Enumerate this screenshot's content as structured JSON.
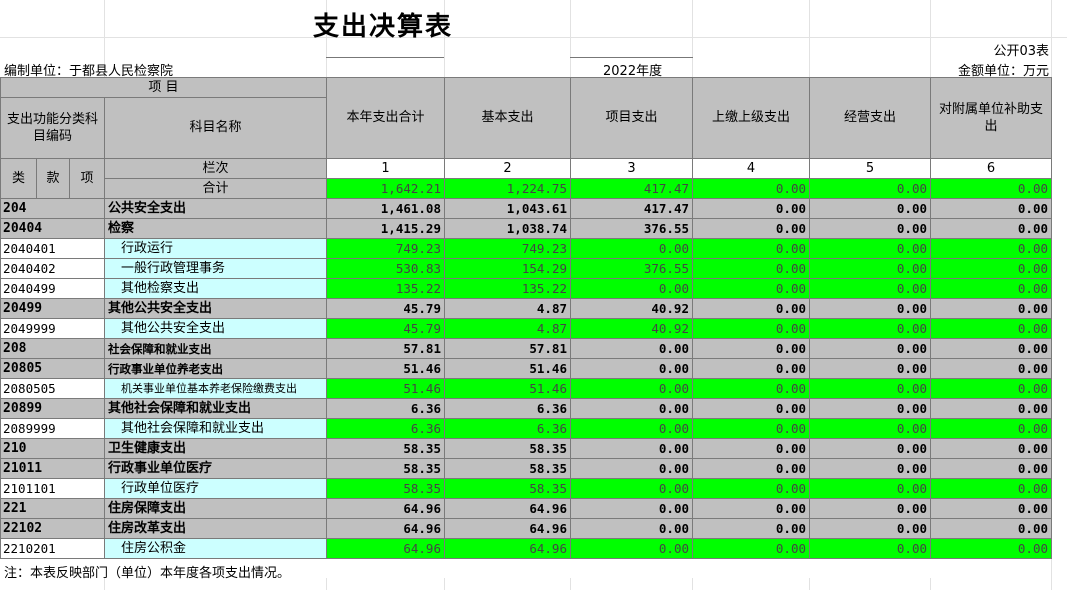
{
  "title": "支出决算表",
  "form_no": "公开03表",
  "unit": "编制单位：于都县人民检察院",
  "year": "2022年度",
  "money_unit": "金额单位：万元",
  "header": {
    "item": "项 目",
    "code_label": "支出功能分类科目编码",
    "name_label": "科目名称",
    "lei": "类",
    "kuan": "款",
    "xiang": "项",
    "col_label": "栏次",
    "cols": [
      "本年支出合计",
      "基本支出",
      "项目支出",
      "上缴上级支出",
      "经营支出",
      "对附属单位补助支出"
    ],
    "col_nums": [
      "1",
      "2",
      "3",
      "4",
      "5",
      "6"
    ]
  },
  "total_row": {
    "label": "合计",
    "values": [
      "1,642.21",
      "1,224.75",
      "417.47",
      "0.00",
      "0.00",
      "0.00"
    ]
  },
  "rows": [
    {
      "code": "204",
      "name": "公共安全支出",
      "level": "main",
      "values": [
        "1,461.08",
        "1,043.61",
        "417.47",
        "0.00",
        "0.00",
        "0.00"
      ]
    },
    {
      "code": "20404",
      "name": "检察",
      "level": "main",
      "values": [
        "1,415.29",
        "1,038.74",
        "376.55",
        "0.00",
        "0.00",
        "0.00"
      ]
    },
    {
      "code": "2040401",
      "name": "行政运行",
      "level": "detail",
      "values": [
        "749.23",
        "749.23",
        "0.00",
        "0.00",
        "0.00",
        "0.00"
      ]
    },
    {
      "code": "2040402",
      "name": "一般行政管理事务",
      "level": "detail",
      "values": [
        "530.83",
        "154.29",
        "376.55",
        "0.00",
        "0.00",
        "0.00"
      ]
    },
    {
      "code": "2040499",
      "name": "其他检察支出",
      "level": "detail",
      "values": [
        "135.22",
        "135.22",
        "0.00",
        "0.00",
        "0.00",
        "0.00"
      ]
    },
    {
      "code": "20499",
      "name": "其他公共安全支出",
      "level": "main",
      "values": [
        "45.79",
        "4.87",
        "40.92",
        "0.00",
        "0.00",
        "0.00"
      ]
    },
    {
      "code": "2049999",
      "name": "其他公共安全支出",
      "level": "detail",
      "values": [
        "45.79",
        "4.87",
        "40.92",
        "0.00",
        "0.00",
        "0.00"
      ]
    },
    {
      "code": "208",
      "name": "社会保障和就业支出",
      "level": "main",
      "small": true,
      "values": [
        "57.81",
        "57.81",
        "0.00",
        "0.00",
        "0.00",
        "0.00"
      ]
    },
    {
      "code": "20805",
      "name": "行政事业单位养老支出",
      "level": "main",
      "small": true,
      "values": [
        "51.46",
        "51.46",
        "0.00",
        "0.00",
        "0.00",
        "0.00"
      ]
    },
    {
      "code": "2080505",
      "name": "机关事业单位基本养老保险缴费支出",
      "level": "detail",
      "small": true,
      "values": [
        "51.46",
        "51.46",
        "0.00",
        "0.00",
        "0.00",
        "0.00"
      ]
    },
    {
      "code": "20899",
      "name": "其他社会保障和就业支出",
      "level": "main",
      "values": [
        "6.36",
        "6.36",
        "0.00",
        "0.00",
        "0.00",
        "0.00"
      ]
    },
    {
      "code": "2089999",
      "name": "其他社会保障和就业支出",
      "level": "detail",
      "values": [
        "6.36",
        "6.36",
        "0.00",
        "0.00",
        "0.00",
        "0.00"
      ]
    },
    {
      "code": "210",
      "name": "卫生健康支出",
      "level": "main",
      "values": [
        "58.35",
        "58.35",
        "0.00",
        "0.00",
        "0.00",
        "0.00"
      ]
    },
    {
      "code": "21011",
      "name": "行政事业单位医疗",
      "level": "main",
      "values": [
        "58.35",
        "58.35",
        "0.00",
        "0.00",
        "0.00",
        "0.00"
      ]
    },
    {
      "code": "2101101",
      "name": "行政单位医疗",
      "level": "detail",
      "values": [
        "58.35",
        "58.35",
        "0.00",
        "0.00",
        "0.00",
        "0.00"
      ]
    },
    {
      "code": "221",
      "name": "住房保障支出",
      "level": "main",
      "values": [
        "64.96",
        "64.96",
        "0.00",
        "0.00",
        "0.00",
        "0.00"
      ]
    },
    {
      "code": "22102",
      "name": "住房改革支出",
      "level": "main",
      "values": [
        "64.96",
        "64.96",
        "0.00",
        "0.00",
        "0.00",
        "0.00"
      ]
    },
    {
      "code": "2210201",
      "name": "住房公积金",
      "level": "detail",
      "values": [
        "64.96",
        "64.96",
        "0.00",
        "0.00",
        "0.00",
        "0.00"
      ]
    }
  ],
  "note": "注：本表反映部门（单位）本年度各项支出情况。"
}
